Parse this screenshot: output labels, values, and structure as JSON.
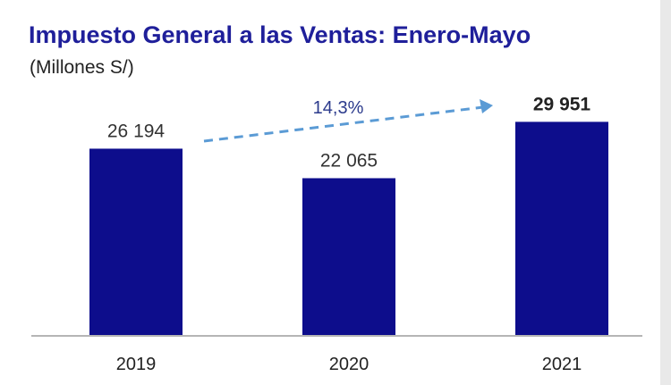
{
  "chart_data": {
    "type": "bar",
    "title": "Impuesto General a las Ventas: Enero-Mayo",
    "subtitle": "(Millones S/)",
    "categories": [
      "2019",
      "2020",
      "2021"
    ],
    "values": [
      26194,
      22065,
      29951
    ],
    "value_labels": [
      "26 194",
      "22 065",
      "29 951"
    ],
    "highlight_index": 2,
    "annotation": "14,3%",
    "bar_color": "#0d0d8c",
    "arrow_color": "#5b9bd5",
    "ylim": [
      0,
      30000
    ],
    "grid": false,
    "legend": "none"
  }
}
